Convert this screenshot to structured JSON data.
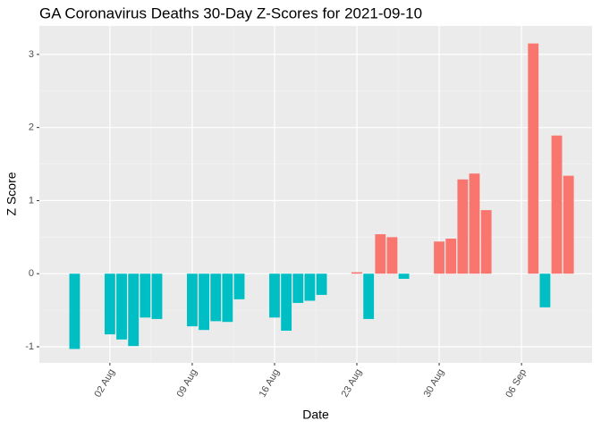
{
  "chart_data": {
    "type": "bar",
    "title": "GA Coronavirus Deaths 30-Day Z-Scores for 2021-09-10",
    "x_label": "Date",
    "y_label": "Z Score",
    "x": [
      "30 Jul",
      "02 Aug",
      "03 Aug",
      "04 Aug",
      "05 Aug",
      "06 Aug",
      "09 Aug",
      "10 Aug",
      "11 Aug",
      "12 Aug",
      "13 Aug",
      "16 Aug",
      "17 Aug",
      "18 Aug",
      "19 Aug",
      "20 Aug",
      "23 Aug",
      "24 Aug",
      "25 Aug",
      "26 Aug",
      "27 Aug",
      "30 Aug",
      "31 Aug",
      "01 Sep",
      "02 Sep",
      "03 Sep",
      "07 Sep",
      "08 Sep",
      "09 Sep",
      "10 Sep"
    ],
    "values": [
      -1.03,
      -0.83,
      -0.9,
      -0.99,
      -0.6,
      -0.62,
      -0.72,
      -0.77,
      -0.65,
      -0.66,
      -0.35,
      -0.6,
      -0.78,
      -0.4,
      -0.37,
      -0.29,
      0.02,
      -0.62,
      0.54,
      0.5,
      -0.07,
      0.44,
      0.48,
      1.29,
      1.37,
      0.87,
      3.15,
      -0.46,
      1.89,
      1.34
    ],
    "positive_color": "#F8766D",
    "negative_color": "#00BFC4",
    "xlim": [
      "27 Jul",
      "12 Sep"
    ],
    "xticks": [
      "02 Aug",
      "09 Aug",
      "16 Aug",
      "23 Aug",
      "30 Aug",
      "06 Sep"
    ],
    "ylim": [
      -1.22,
      3.39
    ],
    "yticks": [
      -1,
      0,
      1,
      2,
      3
    ],
    "grid": true
  }
}
